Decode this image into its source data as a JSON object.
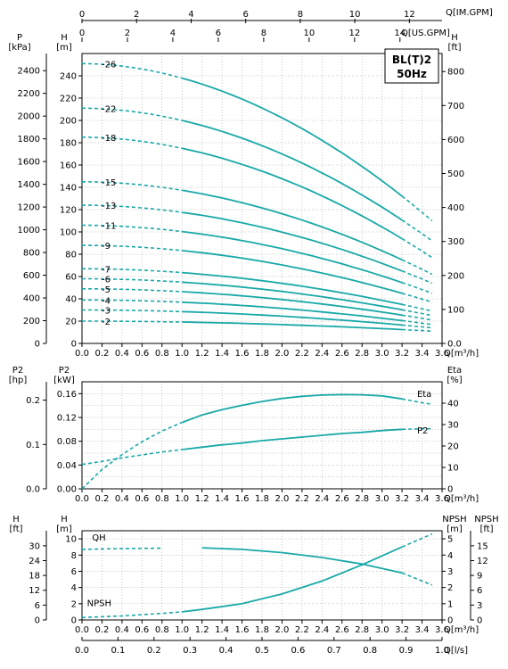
{
  "model_box": {
    "line1": "BL(T)2",
    "line2": "50Hz"
  },
  "colors": {
    "curve": "#1aa8a8",
    "grid": "#999999",
    "axis": "#000000"
  },
  "top_axes": {
    "imp_gpm_label": "Q[IM.GPM]",
    "imp_gpm_ticks": [
      "0",
      "2",
      "4",
      "6",
      "8",
      "10",
      "12"
    ],
    "us_gpm_label": "Q[US.GPM]",
    "us_gpm_ticks": [
      "0",
      "2",
      "4",
      "6",
      "8",
      "10",
      "12",
      "14"
    ]
  },
  "chart_data": [
    {
      "type": "line",
      "name": "head",
      "ylabel_kpa": "P\n[kPa]",
      "ylabel_m": "H\n[m]",
      "ylabel_ft": "H\n[ft]",
      "xlabel": "Q[m³/h]",
      "x_ticks": [
        "0.0",
        "0.2",
        "0.4",
        "0.6",
        "0.8",
        "1.0",
        "1.2",
        "1.4",
        "1.6",
        "1.8",
        "2.0",
        "2.2",
        "2.4",
        "2.6",
        "2.8",
        "3.0",
        "3.2",
        "3.4",
        "3.6"
      ],
      "xlim": [
        0,
        3.6
      ],
      "ylim_m": [
        0,
        260
      ],
      "kpa_ticks": [
        "0",
        "200",
        "400",
        "600",
        "800",
        "1000",
        "1200",
        "1400",
        "1600",
        "1800",
        "2000",
        "2200",
        "2400"
      ],
      "m_ticks": [
        "0",
        "20",
        "40",
        "60",
        "80",
        "100",
        "120",
        "140",
        "160",
        "180",
        "200",
        "220",
        "240"
      ],
      "ft_ticks": [
        "0.0",
        "100",
        "200",
        "300",
        "400",
        "500",
        "600",
        "700",
        "800"
      ],
      "solid_range": [
        1.0,
        3.2
      ],
      "dashed_end": 3.5,
      "series": [
        {
          "name": "-2",
          "h0": 20,
          "h_end": 11
        },
        {
          "name": "-3",
          "h0": 30,
          "h_end": 14
        },
        {
          "name": "-4",
          "h0": 39,
          "h_end": 17
        },
        {
          "name": "-5",
          "h0": 49,
          "h_end": 21
        },
        {
          "name": "-6",
          "h0": 58,
          "h_end": 25
        },
        {
          "name": "-7",
          "h0": 67,
          "h_end": 29
        },
        {
          "name": "-9",
          "h0": 88,
          "h_end": 37
        },
        {
          "name": "-11",
          "h0": 106,
          "h_end": 45
        },
        {
          "name": "-13",
          "h0": 124,
          "h_end": 54
        },
        {
          "name": "-15",
          "h0": 145,
          "h_end": 62
        },
        {
          "name": "-18",
          "h0": 185,
          "h_end": 77
        },
        {
          "name": "-22",
          "h0": 211,
          "h_end": 92
        },
        {
          "name": "-26",
          "h0": 251,
          "h_end": 110
        }
      ]
    },
    {
      "type": "line",
      "name": "power_efficiency",
      "ylabel_hp": "P2\n[hp]",
      "ylabel_kw": "P2\n[kW]",
      "ylabel_eta": "Eta\n[%]",
      "xlabel": "Q[m³/h]",
      "xlim": [
        0,
        3.6
      ],
      "ylim_kw": [
        0,
        0.18
      ],
      "kw_ticks": [
        "0.00",
        "0.04",
        "0.08",
        "0.12",
        "0.16"
      ],
      "hp_ticks": [
        "0.0",
        "0.1",
        "0.2"
      ],
      "eta_ticks": [
        "0",
        "10",
        "20",
        "30",
        "40"
      ],
      "series": [
        {
          "name": "Eta",
          "x": [
            0,
            0.2,
            0.4,
            0.6,
            0.8,
            1.0,
            1.2,
            1.4,
            1.6,
            1.8,
            2.0,
            2.2,
            2.4,
            2.6,
            2.8,
            3.0,
            3.2,
            3.4,
            3.5
          ],
          "y": [
            0,
            9,
            16,
            22,
            27,
            31,
            34.5,
            37,
            39,
            40.8,
            42.2,
            43.2,
            43.8,
            44,
            43.9,
            43.4,
            42,
            40.2,
            39.5
          ]
        },
        {
          "name": "P2",
          "x": [
            0,
            0.2,
            0.4,
            0.6,
            0.8,
            1.0,
            1.2,
            1.4,
            1.6,
            1.8,
            2.0,
            2.2,
            2.4,
            2.6,
            2.8,
            3.0,
            3.2,
            3.4,
            3.5
          ],
          "y": [
            0.041,
            0.046,
            0.052,
            0.057,
            0.062,
            0.066,
            0.07,
            0.074,
            0.077,
            0.081,
            0.084,
            0.087,
            0.09,
            0.093,
            0.095,
            0.098,
            0.1,
            0.101,
            0.101
          ]
        }
      ],
      "solid_range": [
        1.0,
        3.2
      ]
    },
    {
      "type": "line",
      "name": "npsh",
      "ylabel_ft": "H\n[ft]",
      "ylabel_m": "H\n[m]",
      "ylabel_npsh_m": "NPSH\n[m]",
      "ylabel_npsh_ft": "NPSH\n[ft]",
      "xlabel": "Q[m³/h]",
      "xlabel2": "Q[l/s]",
      "xlim": [
        0,
        3.6
      ],
      "ylim_m": [
        0,
        11
      ],
      "m_ticks": [
        "0",
        "2",
        "4",
        "6",
        "8",
        "10"
      ],
      "ft_ticks": [
        "0",
        "6",
        "12",
        "18",
        "24",
        "30"
      ],
      "npsh_m_ticks": [
        "0",
        "1",
        "2",
        "3",
        "4",
        "5"
      ],
      "npsh_ft_ticks": [
        "0",
        "3",
        "6",
        "9",
        "12",
        "15"
      ],
      "ls_ticks": [
        "0.0",
        "0.1",
        "0.2",
        "0.3",
        "0.4",
        "0.5",
        "0.6",
        "0.7",
        "0.8",
        "0.9",
        "1.0"
      ],
      "series": [
        {
          "name": "QH",
          "x": [
            0,
            0.4,
            0.8,
            1.2,
            1.6,
            2.0,
            2.4,
            2.8,
            3.2,
            3.5
          ],
          "y": [
            8.7,
            8.8,
            8.85,
            8.9,
            8.7,
            8.3,
            7.7,
            6.9,
            5.8,
            4.3
          ]
        },
        {
          "name": "NPSH",
          "x": [
            0,
            0.4,
            0.8,
            1.0,
            1.2,
            1.6,
            2.0,
            2.4,
            2.8,
            3.2,
            3.5
          ],
          "y": [
            0.15,
            0.25,
            0.4,
            0.5,
            0.65,
            1.0,
            1.6,
            2.4,
            3.4,
            4.5,
            5.3
          ]
        }
      ],
      "solid_range": [
        1.0,
        3.2
      ]
    }
  ]
}
